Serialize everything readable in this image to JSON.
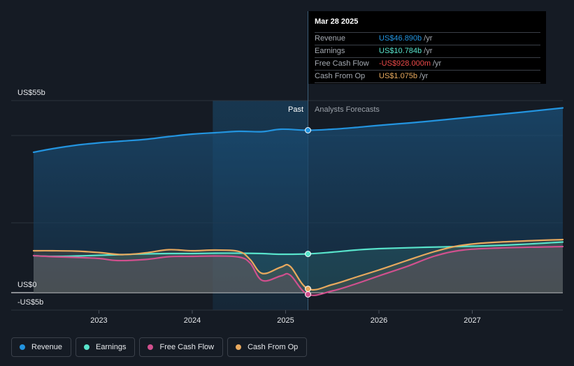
{
  "chart_data": {
    "type": "line",
    "y_axis": {
      "top_label": "US$55b",
      "zero_label": "US$0",
      "bottom_label": "-US$5b",
      "ylim": [
        -5,
        55
      ]
    },
    "x_axis": {
      "ticks": [
        "2023",
        "2024",
        "2025",
        "2026",
        "2027"
      ],
      "xlim": [
        2022.3,
        2027.97
      ]
    },
    "past_label": "Past",
    "forecast_label": "Analysts Forecasts",
    "divider_x": 2025.24,
    "shaded_past_start": 2024.22,
    "series": [
      {
        "name": "Revenue",
        "color": "#2394df",
        "points": [
          [
            2022.3,
            40.2
          ],
          [
            2022.5,
            41.2
          ],
          [
            2022.75,
            42.2
          ],
          [
            2023.0,
            42.9
          ],
          [
            2023.25,
            43.4
          ],
          [
            2023.5,
            43.9
          ],
          [
            2023.75,
            44.7
          ],
          [
            2024.0,
            45.4
          ],
          [
            2024.25,
            45.8
          ],
          [
            2024.5,
            46.2
          ],
          [
            2024.75,
            46.1
          ],
          [
            2024.95,
            46.8
          ],
          [
            2025.24,
            46.5
          ],
          [
            2025.5,
            46.8
          ],
          [
            2025.75,
            47.3
          ],
          [
            2026.0,
            47.9
          ],
          [
            2026.5,
            49.0
          ],
          [
            2027.0,
            50.3
          ],
          [
            2027.5,
            51.6
          ],
          [
            2027.97,
            52.9
          ]
        ]
      },
      {
        "name": "Earnings",
        "color": "#58e3cb",
        "points": [
          [
            2022.3,
            10.6
          ],
          [
            2022.5,
            10.4
          ],
          [
            2022.75,
            10.5
          ],
          [
            2023.0,
            10.7
          ],
          [
            2023.25,
            10.9
          ],
          [
            2023.5,
            11.1
          ],
          [
            2023.75,
            11.2
          ],
          [
            2024.0,
            11.2
          ],
          [
            2024.25,
            11.3
          ],
          [
            2024.5,
            11.3
          ],
          [
            2024.75,
            11.2
          ],
          [
            2024.95,
            11.0
          ],
          [
            2025.24,
            11.1
          ],
          [
            2025.5,
            11.6
          ],
          [
            2025.75,
            12.2
          ],
          [
            2026.0,
            12.6
          ],
          [
            2026.5,
            13.0
          ],
          [
            2027.0,
            13.3
          ],
          [
            2027.5,
            13.8
          ],
          [
            2027.97,
            14.5
          ]
        ]
      },
      {
        "name": "Free Cash Flow",
        "color": "#d1508e",
        "points": [
          [
            2022.3,
            10.6
          ],
          [
            2022.5,
            10.3
          ],
          [
            2022.75,
            10.1
          ],
          [
            2023.0,
            9.8
          ],
          [
            2023.2,
            9.2
          ],
          [
            2023.5,
            9.5
          ],
          [
            2023.75,
            10.3
          ],
          [
            2024.0,
            10.4
          ],
          [
            2024.25,
            10.5
          ],
          [
            2024.5,
            10.2
          ],
          [
            2024.62,
            8.5
          ],
          [
            2024.75,
            3.5
          ],
          [
            2024.95,
            4.8
          ],
          [
            2025.05,
            5.0
          ],
          [
            2025.24,
            -0.5
          ],
          [
            2025.5,
            0.5
          ],
          [
            2025.75,
            2.5
          ],
          [
            2026.0,
            4.8
          ],
          [
            2026.3,
            7.5
          ],
          [
            2026.6,
            10.5
          ],
          [
            2026.9,
            12.2
          ],
          [
            2027.3,
            12.8
          ],
          [
            2027.97,
            13.2
          ]
        ]
      },
      {
        "name": "Cash From Op",
        "color": "#e8a95e",
        "points": [
          [
            2022.3,
            12.0
          ],
          [
            2022.5,
            12.0
          ],
          [
            2022.75,
            11.9
          ],
          [
            2023.0,
            11.5
          ],
          [
            2023.25,
            10.9
          ],
          [
            2023.5,
            11.4
          ],
          [
            2023.75,
            12.3
          ],
          [
            2024.0,
            12.0
          ],
          [
            2024.25,
            12.2
          ],
          [
            2024.5,
            11.8
          ],
          [
            2024.62,
            9.5
          ],
          [
            2024.75,
            5.5
          ],
          [
            2024.95,
            7.3
          ],
          [
            2025.05,
            7.5
          ],
          [
            2025.24,
            1.1
          ],
          [
            2025.5,
            2.3
          ],
          [
            2025.75,
            4.4
          ],
          [
            2026.0,
            6.5
          ],
          [
            2026.3,
            9.2
          ],
          [
            2026.6,
            11.8
          ],
          [
            2026.9,
            13.6
          ],
          [
            2027.3,
            14.5
          ],
          [
            2027.97,
            15.2
          ]
        ]
      }
    ]
  },
  "tooltip": {
    "date": "Mar 28 2025",
    "rows": [
      {
        "label": "Revenue",
        "value": "US$46.890b",
        "unit": "/yr",
        "color": "#2394df"
      },
      {
        "label": "Earnings",
        "value": "US$10.784b",
        "unit": "/yr",
        "color": "#58e3cb"
      },
      {
        "label": "Free Cash Flow",
        "value": "-US$928.000m",
        "unit": "/yr",
        "color": "#ef4a4a"
      },
      {
        "label": "Cash From Op",
        "value": "US$1.075b",
        "unit": "/yr",
        "color": "#e8a95e"
      }
    ]
  },
  "legend": [
    {
      "label": "Revenue",
      "color": "#2394df"
    },
    {
      "label": "Earnings",
      "color": "#58e3cb"
    },
    {
      "label": "Free Cash Flow",
      "color": "#d1508e"
    },
    {
      "label": "Cash From Op",
      "color": "#e8a95e"
    }
  ]
}
